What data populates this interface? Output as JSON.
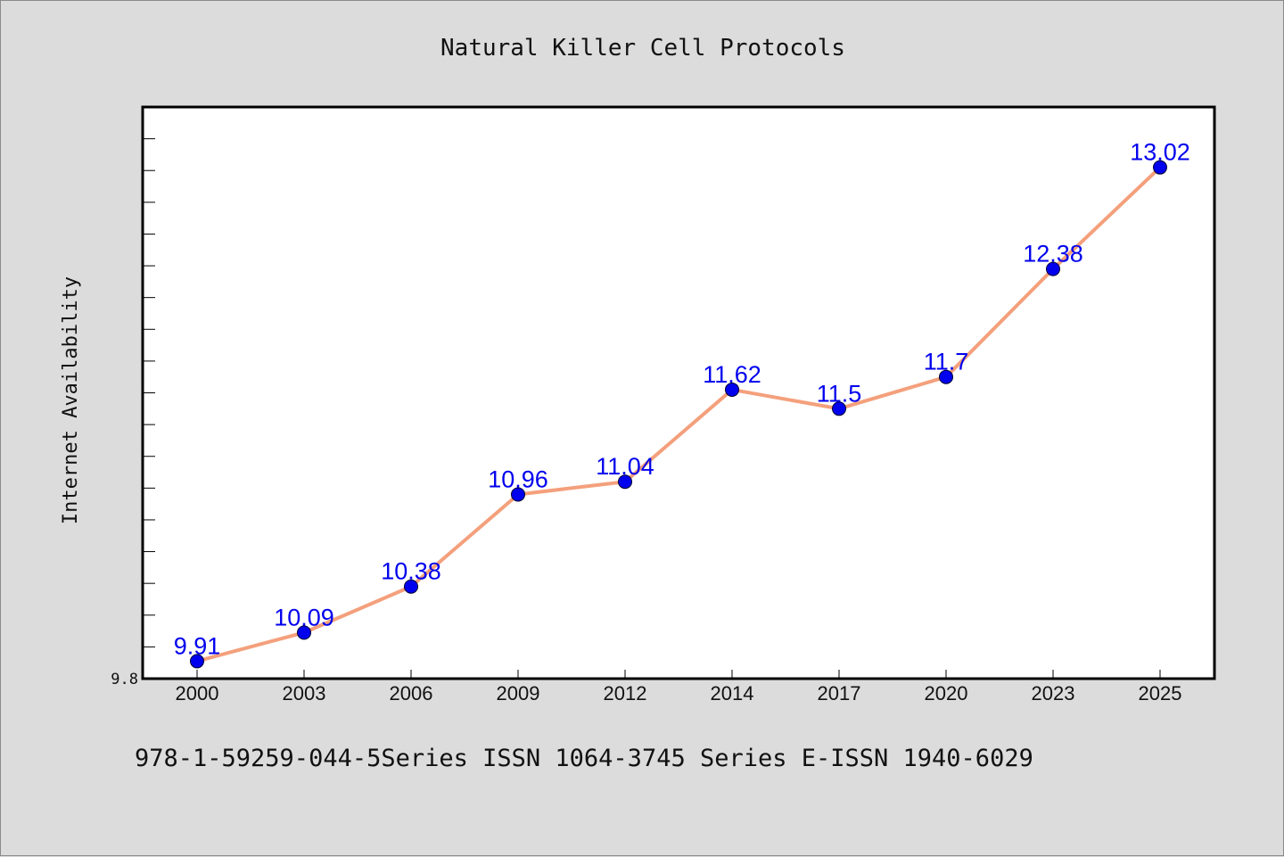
{
  "chart_data": {
    "type": "line",
    "title": "Natural Killer Cell Protocols",
    "xlabel": "",
    "ylabel": "Internet Availability",
    "x": [
      "2000",
      "2003",
      "2006",
      "2009",
      "2012",
      "2014",
      "2017",
      "2020",
      "2023",
      "2025"
    ],
    "series": [
      {
        "values": [
          9.91,
          10.09,
          10.38,
          10.96,
          11.04,
          11.62,
          11.5,
          11.7,
          12.38,
          13.02
        ],
        "data_labels": [
          "9.91",
          "10.09",
          "10.38",
          "10.96",
          "11.04",
          "11.62",
          "11.5",
          "11.7",
          "12.38",
          "13.02"
        ],
        "line_color": "#f4a07c",
        "marker_color": "#0000ee"
      }
    ],
    "yticks": [
      "9.8"
    ],
    "ylim": [
      9.8,
      13.4
    ],
    "grid": false,
    "legend": "none",
    "background": "#ffffff",
    "frame_color": "#000000"
  },
  "footer": {
    "text": "978-1-59259-044-5Series ISSN 1064-3745 Series E-ISSN 1940-6029"
  },
  "colors": {
    "page_background": "#dcdcdc"
  }
}
